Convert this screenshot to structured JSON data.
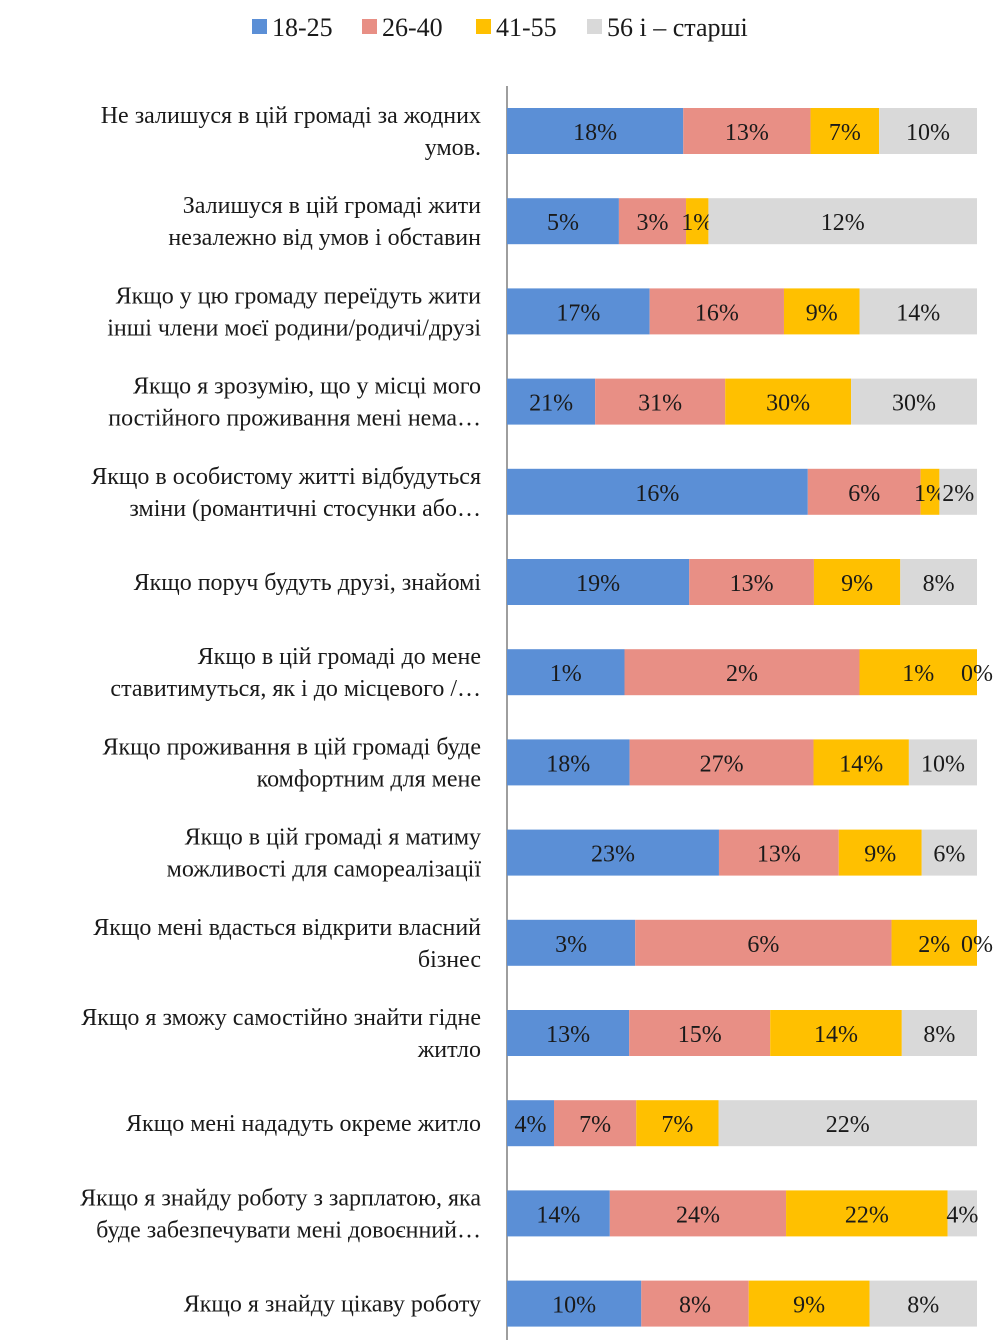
{
  "chart_data": {
    "type": "bar",
    "orientation": "horizontal",
    "stacked": true,
    "normalized_width": true,
    "legend_position": "top",
    "grid": false,
    "series": [
      {
        "name": "18-25",
        "color": "#5b8fd6",
        "values": [
          18,
          5,
          17,
          21,
          16,
          19,
          1,
          18,
          23,
          3,
          13,
          4,
          14,
          10
        ]
      },
      {
        "name": "26-40",
        "color": "#e88f85",
        "values": [
          13,
          3,
          16,
          31,
          6,
          13,
          2,
          27,
          13,
          6,
          15,
          7,
          24,
          8
        ]
      },
      {
        "name": "41-55",
        "color": "#ffc000",
        "values": [
          7,
          1,
          9,
          30,
          1,
          9,
          1,
          14,
          9,
          2,
          14,
          7,
          22,
          9
        ]
      },
      {
        "name": "56 і – старші",
        "color": "#d9d9d9",
        "values": [
          10,
          12,
          14,
          30,
          2,
          8,
          0,
          10,
          6,
          0,
          8,
          22,
          4,
          8
        ]
      }
    ],
    "categories": [
      [
        "Не залишуся в цій громаді за жодних",
        "умов."
      ],
      [
        "Залишуся в цій громаді жити",
        "незалежно від умов і обставин"
      ],
      [
        "Якщо у цю громаду переїдуть жити",
        "інші члени моєї родини/родичі/друзі"
      ],
      [
        "Якщо я зрозумію, що у місці мого",
        "постійного проживання мені нема…"
      ],
      [
        "Якщо в особистому житті відбудуться",
        "зміни (романтичні стосунки або…"
      ],
      [
        "Якщо поруч будуть друзі, знайомі"
      ],
      [
        "Якщо в цій громаді до мене",
        "ставитимуться, як і до місцевого /…"
      ],
      [
        "Якщо проживання в цій громаді буде",
        "комфортним для мене"
      ],
      [
        "Якщо в цій громаді я матиму",
        "можливості для самореалізації"
      ],
      [
        "Якщо мені вдасться відкрити власний",
        "бізнес"
      ],
      [
        "Якщо я зможу самостійно знайти гідне",
        "житло"
      ],
      [
        "Якщо мені нададуть окреме житло"
      ],
      [
        "Якщо я знайду роботу з зарплатою, яка",
        "буде забезпечувати мені довоєнний…"
      ],
      [
        "Якщо я знайду цікаву роботу"
      ]
    ],
    "value_suffix": "%"
  }
}
